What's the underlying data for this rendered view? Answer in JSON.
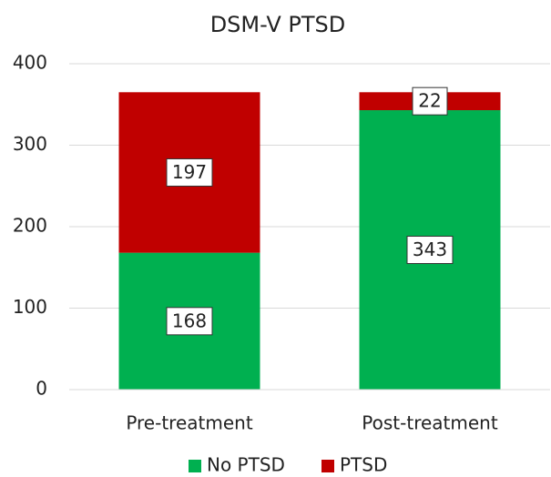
{
  "chart_data": {
    "type": "stacked_bar",
    "title": "DSM-V PTSD",
    "categories": [
      "Pre-treatment",
      "Post-treatment"
    ],
    "series": [
      {
        "name": "No PTSD",
        "color": "#00b050",
        "values": [
          168,
          343
        ]
      },
      {
        "name": "PTSD",
        "color": "#c00000",
        "values": [
          197,
          22
        ]
      }
    ],
    "ylim": [
      0,
      400
    ],
    "yticks": [
      0,
      100,
      200,
      300,
      400
    ],
    "grid": true,
    "legend": "bottom"
  }
}
